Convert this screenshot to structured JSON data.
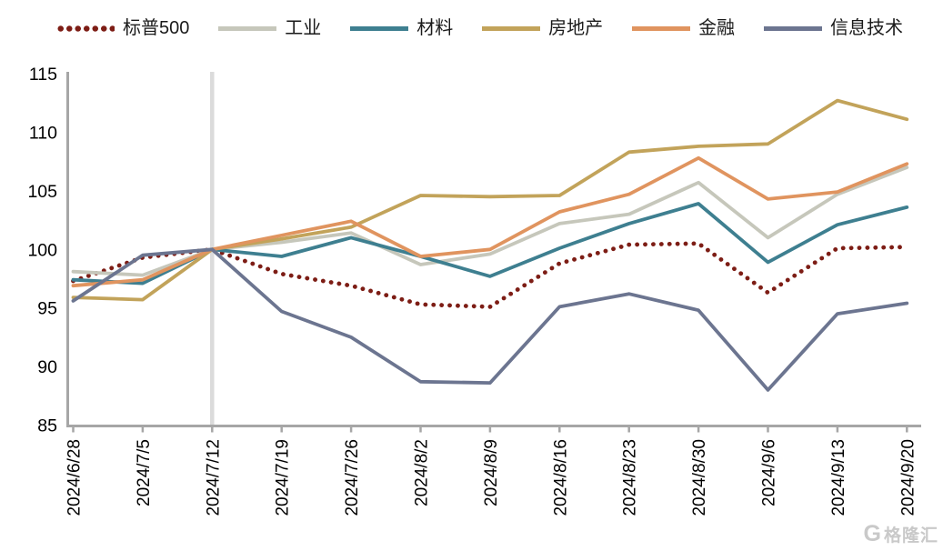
{
  "page": {
    "background": "#FFFFFF"
  },
  "watermark": {
    "logo": "G",
    "text": "格隆汇"
  },
  "colors": {
    "axis": "#A6A6A6",
    "tick_label": "#000000",
    "event_line": "#DBDBDB",
    "watermark": "#C9C9C9",
    "background": "#FFFFFF"
  },
  "chart_data": {
    "type": "line",
    "title": "",
    "xlabel": "",
    "ylabel": "",
    "x_labels": [
      "2024/6/28",
      "2024/7/5",
      "2024/7/12",
      "2024/7/19",
      "2024/7/26",
      "2024/8/2",
      "2024/8/9",
      "2024/8/16",
      "2024/8/23",
      "2024/8/30",
      "2024/9/6",
      "2024/9/13",
      "2024/9/20"
    ],
    "ylim": [
      85,
      115
    ],
    "yticks": [
      85,
      90,
      95,
      100,
      105,
      110,
      115
    ],
    "grid": false,
    "legend_position": "top",
    "event_line_at": "2024/7/12",
    "base_value_note": "all series rebased to 100 at 2024/7/12",
    "series": [
      {
        "key": "sp500",
        "name": "标普500",
        "color": "#7D1D15",
        "line_style": "dotted",
        "values": [
          97.3,
          99.3,
          100,
          97.9,
          96.9,
          95.3,
          95.1,
          98.8,
          100.4,
          100.5,
          96.3,
          100.1,
          100.2
        ]
      },
      {
        "key": "industrials",
        "name": "工业",
        "color": "#C6C7BB",
        "line_style": "solid",
        "values": [
          98.1,
          97.8,
          100,
          100.6,
          101.4,
          98.7,
          99.6,
          102.2,
          103.0,
          105.7,
          101.0,
          104.7,
          107.0
        ]
      },
      {
        "key": "materials",
        "name": "材料",
        "color": "#3E7F90",
        "line_style": "solid",
        "values": [
          97.4,
          97.1,
          100,
          99.4,
          101.0,
          99.4,
          97.7,
          100.1,
          102.2,
          103.9,
          98.9,
          102.1,
          103.6
        ]
      },
      {
        "key": "real-estate",
        "name": "房地产",
        "color": "#C2A35A",
        "line_style": "solid",
        "values": [
          95.9,
          95.7,
          100,
          100.9,
          101.9,
          104.6,
          104.5,
          104.6,
          108.3,
          108.8,
          109.0,
          112.7,
          111.1
        ]
      },
      {
        "key": "financials",
        "name": "金融",
        "color": "#E0945F",
        "line_style": "solid",
        "values": [
          96.9,
          97.4,
          100,
          101.2,
          102.4,
          99.4,
          100.0,
          103.2,
          104.7,
          107.8,
          104.3,
          104.9,
          107.3
        ]
      },
      {
        "key": "info-tech",
        "name": "信息技术",
        "color": "#6C7590",
        "line_style": "solid",
        "values": [
          95.6,
          99.5,
          100,
          94.7,
          92.5,
          88.7,
          88.6,
          95.1,
          96.2,
          94.8,
          88.0,
          94.5,
          95.4
        ]
      }
    ]
  }
}
